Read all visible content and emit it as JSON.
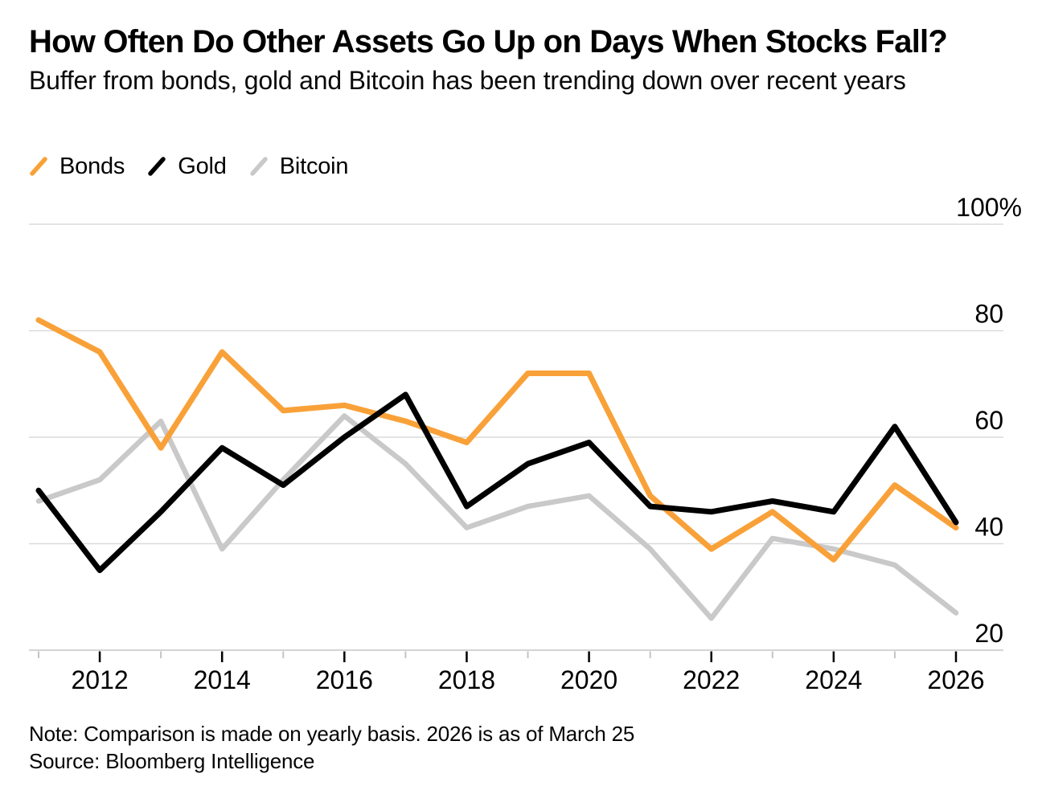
{
  "header": {
    "title": "How Often Do Other Assets Go Up on Days When Stocks Fall?",
    "subtitle": "Buffer from bonds, gold and Bitcoin has been trending down over recent years"
  },
  "legend": {
    "items": [
      {
        "label": "Bonds",
        "color": "#F9A139"
      },
      {
        "label": "Gold",
        "color": "#000000"
      },
      {
        "label": "Bitcoin",
        "color": "#C9C9C9"
      }
    ]
  },
  "chart_data": {
    "type": "line",
    "x": [
      2011,
      2012,
      2013,
      2014,
      2015,
      2016,
      2017,
      2018,
      2019,
      2020,
      2021,
      2022,
      2023,
      2024,
      2025,
      2026
    ],
    "series": [
      {
        "name": "Bonds",
        "color": "#F9A139",
        "values": [
          82,
          76,
          58,
          76,
          65,
          66,
          63,
          59,
          72,
          72,
          49,
          39,
          46,
          37,
          51,
          43
        ]
      },
      {
        "name": "Gold",
        "color": "#000000",
        "values": [
          50,
          35,
          46,
          58,
          51,
          60,
          68,
          47,
          55,
          59,
          47,
          46,
          48,
          46,
          62,
          44
        ]
      },
      {
        "name": "Bitcoin",
        "color": "#C9C9C9",
        "values": [
          48,
          52,
          63,
          39,
          52,
          64,
          55,
          43,
          47,
          49,
          39,
          26,
          41,
          39,
          36,
          27
        ]
      }
    ],
    "title": "How Often Do Other Assets Go Up on Days When Stocks Fall?",
    "xlabel": "",
    "ylabel": "",
    "ylim": [
      20,
      100
    ],
    "grid": "horizontal",
    "legend_position": "top-left",
    "yticks": {
      "values": [
        100,
        80,
        60,
        40,
        20
      ],
      "labels": [
        "100%",
        "80",
        "60",
        "40",
        "20"
      ]
    },
    "xtick_labels": [
      "2012",
      "2014",
      "2016",
      "2018",
      "2020",
      "2022",
      "2024",
      "2026"
    ]
  },
  "footer": {
    "note": "Note: Comparison is made on yearly basis. 2026 is as of March 25",
    "source": "Source: Bloomberg Intelligence"
  }
}
